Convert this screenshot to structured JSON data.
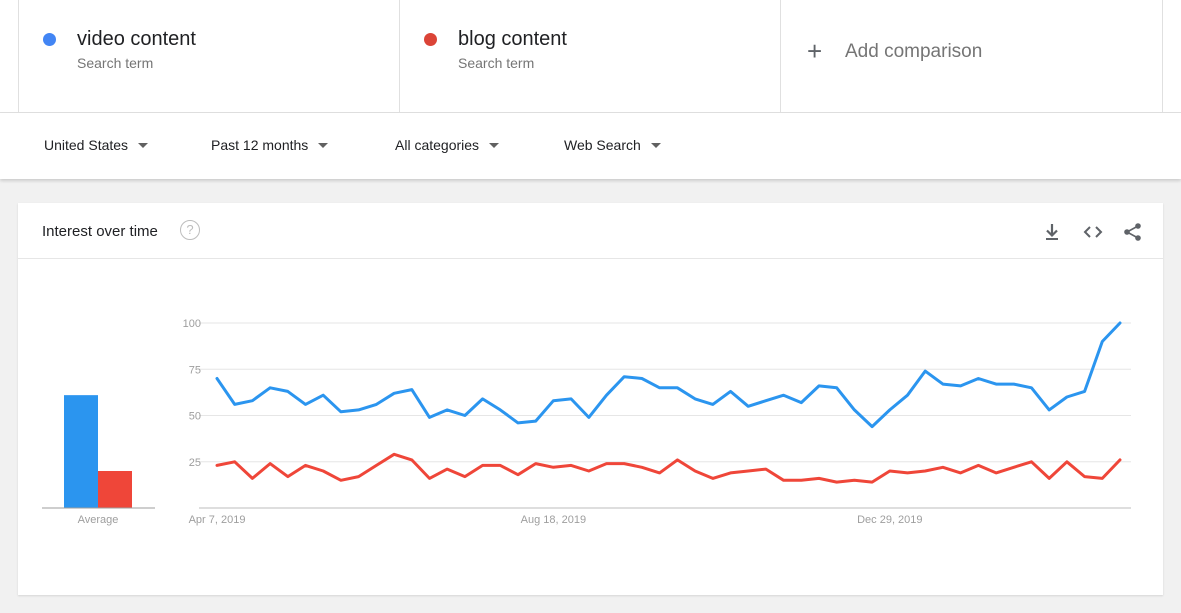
{
  "terms": [
    {
      "name": "video content",
      "sub": "Search term",
      "color": "#4285f4"
    },
    {
      "name": "blog content",
      "sub": "Search term",
      "color": "#db4437"
    }
  ],
  "add_comparison": {
    "icon": "plus-icon",
    "label": "Add comparison"
  },
  "filters": [
    {
      "label": "United States"
    },
    {
      "label": "Past 12 months"
    },
    {
      "label": "All categories"
    },
    {
      "label": "Web Search"
    }
  ],
  "card": {
    "title": "Interest over time",
    "help_icon": "help-circle-icon",
    "actions": [
      "download-icon",
      "embed-icon",
      "share-icon"
    ]
  },
  "chart_data": {
    "type": "line",
    "ylim": [
      0,
      100
    ],
    "yticks": [
      25,
      50,
      75,
      100
    ],
    "xtick_labels": [
      {
        "label": "Apr 7, 2019",
        "index": 0
      },
      {
        "label": "Aug 18, 2019",
        "index": 19
      },
      {
        "label": "Dec 29, 2019",
        "index": 38
      }
    ],
    "average_label": "Average",
    "averages": [
      61,
      20
    ],
    "series": [
      {
        "name": "video content",
        "color": "#2b95ef",
        "values": [
          70,
          56,
          58,
          65,
          63,
          56,
          61,
          52,
          53,
          56,
          62,
          64,
          49,
          53,
          50,
          59,
          53,
          46,
          47,
          58,
          59,
          49,
          61,
          71,
          70,
          65,
          65,
          59,
          56,
          63,
          55,
          58,
          61,
          57,
          66,
          65,
          53,
          44,
          53,
          61,
          74,
          67,
          66,
          70,
          67,
          67,
          65,
          53,
          60,
          63,
          90,
          100
        ]
      },
      {
        "name": "blog content",
        "color": "#ef4639",
        "values": [
          23,
          25,
          16,
          24,
          17,
          23,
          20,
          15,
          17,
          23,
          29,
          26,
          16,
          21,
          17,
          23,
          23,
          18,
          24,
          22,
          23,
          20,
          24,
          24,
          22,
          19,
          26,
          20,
          16,
          19,
          20,
          21,
          15,
          15,
          16,
          14,
          15,
          14,
          20,
          19,
          20,
          22,
          19,
          23,
          19,
          22,
          25,
          16,
          25,
          17,
          16,
          26
        ]
      }
    ]
  }
}
